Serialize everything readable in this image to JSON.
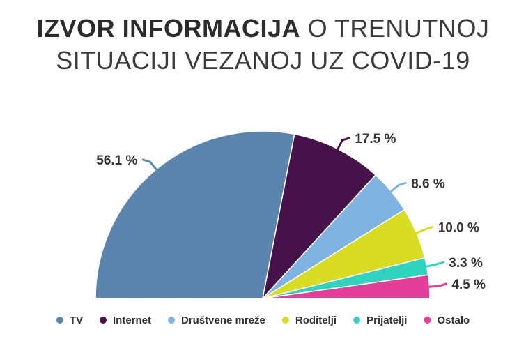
{
  "title": {
    "line1_bold": "IZVOR INFORMACIJA",
    "line1_rest": " O TRENUTNOJ",
    "line2": "SITUACIJI VEZANOJ UZ COVID-19"
  },
  "chart_data": {
    "type": "pie",
    "variant": "half-pie",
    "title": "IZVOR INFORMACIJA O TRENUTNOJ SITUACIJI VEZANOJ UZ COVID-19",
    "categories": [
      "TV",
      "Internet",
      "Društvene mreže",
      "Roditelji",
      "Prijatelji",
      "Ostalo"
    ],
    "values": [
      56.1,
      17.5,
      8.6,
      10.0,
      3.3,
      4.5
    ],
    "value_labels": [
      "56.1 %",
      "17.5 %",
      "8.6 %",
      "10.0 %",
      "3.3 %",
      "4.5 %"
    ],
    "colors": [
      "#5b85ad",
      "#45134a",
      "#7fb3e2",
      "#d8dc22",
      "#2fd3c0",
      "#e23d99"
    ],
    "legend_position": "bottom"
  }
}
